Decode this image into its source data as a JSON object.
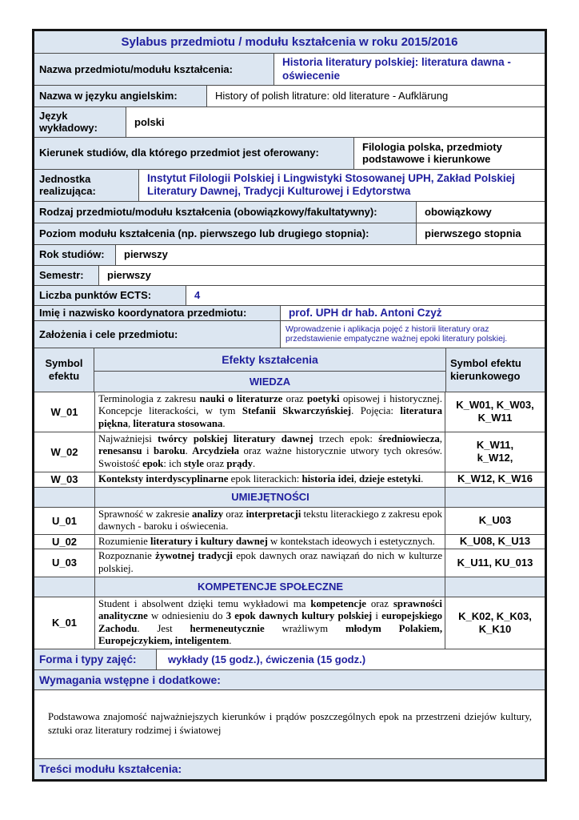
{
  "title": "Sylabus przedmiotu / modułu kształcenia w roku 2015/2016",
  "colors": {
    "accent_blue": "#1f1f9e",
    "cell_bg": "#dce6f1"
  },
  "info": [
    {
      "label": "Nazwa przedmiotu/modułu kształcenia:",
      "value": "Historia literatury polskiej: literatura dawna - oświecenie"
    },
    {
      "label": "Nazwa w języku angielskim:",
      "value": "History of polish litrature: old literature - Aufklärung"
    },
    {
      "label": "Język wykładowy:",
      "value": "polski"
    },
    {
      "label": "Kierunek studiów, dla którego przedmiot jest oferowany:",
      "value": "Filologia polska, przedmioty podstawowe i kierunkowe"
    },
    {
      "label": "Jednostka realizująca:",
      "value": "Instytut Filologii Polskiej i Lingwistyki Stosowanej UPH, Zakład Polskiej Literatury Dawnej, Tradycji Kulturowej i Edytorstwa"
    },
    {
      "label": "Rodzaj przedmiotu/modułu kształcenia (obowiązkowy/fakultatywny):",
      "value": "obowiązkowy"
    },
    {
      "label": "Poziom modułu kształcenia (np. pierwszego lub drugiego stopnia):",
      "value": "pierwszego stopnia"
    },
    {
      "label": "Rok studiów:",
      "value": "pierwszy"
    },
    {
      "label": "Semestr:",
      "value": "pierwszy"
    },
    {
      "label": "Liczba punktów ECTS:",
      "value": "4"
    },
    {
      "label": "Imię i nazwisko koordynatora przedmiotu:",
      "value": "prof. UPH dr hab. Antoni Czyż"
    },
    {
      "label": "Założenia i cele przedmiotu:",
      "value": "Wprowadzenie i aplikacja pojęć z historii literatury oraz przedstawienie empatyczne ważnej epoki literatury polskiej."
    }
  ],
  "effects": {
    "col1_header": "Symbol efektu",
    "col2_header": "Efekty kształcenia",
    "knowledge_section": "WIEDZA",
    "col3_header": "Symbol efektu kierunkowego",
    "rows": [
      {
        "type": "item",
        "symbol": "W_01",
        "codes": "K_W01, K_W03,\nK_W11",
        "desc": [
          {
            "t": "Terminologia z zakresu "
          },
          {
            "t": "nauki o literaturze",
            "b": true
          },
          {
            "t": " oraz "
          },
          {
            "t": "poetyki",
            "b": true
          },
          {
            "t": " opisowej i historycznej. Koncepcje literackości, w tym "
          },
          {
            "t": "Stefanii Skwarczyńskiej",
            "b": true
          },
          {
            "t": ". Pojęcia: "
          },
          {
            "t": "literatura piękna",
            "b": true
          },
          {
            "t": ", "
          },
          {
            "t": "literatura stosowana",
            "b": true
          },
          {
            "t": "."
          }
        ]
      },
      {
        "type": "item",
        "symbol": "W_02",
        "codes": "K_W11,\nk_W12,",
        "desc": [
          {
            "t": "Najważniejsi "
          },
          {
            "t": "twórcy polskiej literatury dawnej",
            "b": true
          },
          {
            "t": " trzech epok: "
          },
          {
            "t": "średniowiecza",
            "b": true
          },
          {
            "t": ", "
          },
          {
            "t": "renesansu",
            "b": true
          },
          {
            "t": " i "
          },
          {
            "t": "baroku",
            "b": true
          },
          {
            "t": ". "
          },
          {
            "t": "Arcydzieła",
            "b": true
          },
          {
            "t": " oraz ważne historycznie utwory tych okresów. Swoistość "
          },
          {
            "t": "epok",
            "b": true
          },
          {
            "t": ": ich "
          },
          {
            "t": "style",
            "b": true
          },
          {
            "t": " oraz "
          },
          {
            "t": "prądy",
            "b": true
          },
          {
            "t": "."
          }
        ]
      },
      {
        "type": "item",
        "symbol": "W_03",
        "codes": "K_W12, K_W16",
        "desc": [
          {
            "t": "Konteksty interdyscyplinarne",
            "b": true
          },
          {
            "t": " epok literackich: "
          },
          {
            "t": "historia idei",
            "b": true
          },
          {
            "t": ", "
          },
          {
            "t": "dzieje estetyki",
            "b": true
          },
          {
            "t": "."
          }
        ]
      },
      {
        "type": "section",
        "label": "UMIEJĘTNOŚCI"
      },
      {
        "type": "item",
        "symbol": "U_01",
        "codes": "K_U03",
        "desc": [
          {
            "t": "Sprawność w zakresie "
          },
          {
            "t": "analizy",
            "b": true
          },
          {
            "t": " oraz "
          },
          {
            "t": "interpretacji",
            "b": true
          },
          {
            "t": " tekstu literackiego z zakresu epok dawnych - baroku i oświecenia."
          }
        ]
      },
      {
        "type": "item",
        "symbol": "U_02",
        "codes": "K_U08, K_U13",
        "desc": [
          {
            "t": "Rozumienie "
          },
          {
            "t": "literatury i kultury dawnej",
            "b": true
          },
          {
            "t": " w kontekstach ideowych i estetycznych."
          }
        ]
      },
      {
        "type": "item",
        "symbol": "U_03",
        "codes": "K_U11, KU_013",
        "desc": [
          {
            "t": "Rozpoznanie "
          },
          {
            "t": "żywotnej tradycji",
            "b": true
          },
          {
            "t": " epok dawnych oraz nawiązań do nich w kulturze polskiej."
          }
        ]
      },
      {
        "type": "section",
        "label": "KOMPETENCJE SPOŁECZNE"
      },
      {
        "type": "item",
        "symbol": "K_01",
        "codes": "K_K02, K_K03,\nK_K10",
        "desc": [
          {
            "t": "Student i absolwent dzięki temu wykładowi ma "
          },
          {
            "t": "kompetencje",
            "b": true
          },
          {
            "t": " oraz "
          },
          {
            "t": "sprawności analityczne",
            "b": true
          },
          {
            "t": " w odniesieniu do "
          },
          {
            "t": "3 epok dawnych kultury polskiej",
            "b": true
          },
          {
            "t": " i "
          },
          {
            "t": "europejskiego Zachodu",
            "b": true
          },
          {
            "t": ". Jest "
          },
          {
            "t": "hermeneutycznie",
            "b": true
          },
          {
            "t": " wrażliwym "
          },
          {
            "t": "młodym Polakiem, Europejczykiem, inteligentem",
            "b": true
          },
          {
            "t": "."
          }
        ]
      }
    ]
  },
  "forma": {
    "label": "Forma i typy zajęć:",
    "value": "wykłady (15 godz.), ćwiczenia (15 godz.)"
  },
  "wymagania": {
    "header": "Wymagania wstępne i dodatkowe:",
    "content": "Podstawowa znajomość najważniejszych kierunków i prądów poszczególnych epok na przestrzeni  dziejów kultury, sztuki oraz literatury rodzimej i światowej"
  },
  "tresci": {
    "header": "Treści modułu kształcenia:"
  }
}
